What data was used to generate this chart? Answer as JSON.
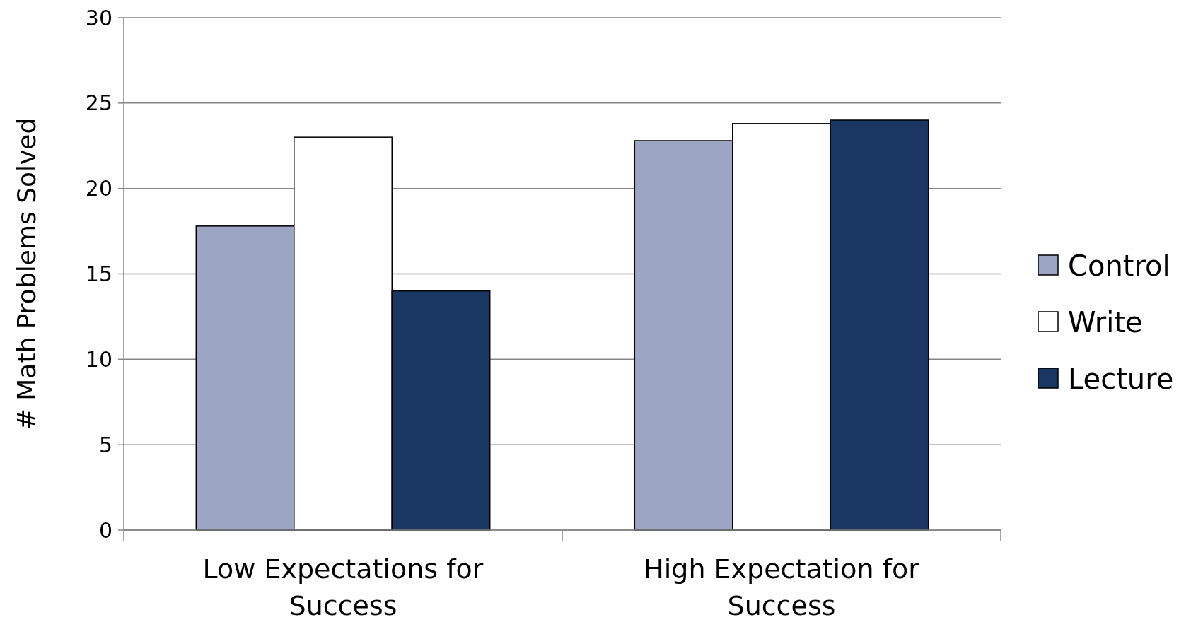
{
  "chart_data": {
    "type": "bar",
    "ylabel": "# Math Problems Solved",
    "categories": [
      "Low Expectations for Success",
      "High Expectation for Success"
    ],
    "series": [
      {
        "name": "Control",
        "color": "#9ca5c4",
        "values": [
          17.8,
          22.8
        ]
      },
      {
        "name": "Write",
        "color": "#ffffff",
        "values": [
          23.0,
          23.8
        ]
      },
      {
        "name": "Lecture",
        "color": "#1a3764",
        "values": [
          14.0,
          24.0
        ]
      }
    ],
    "ylim": [
      0,
      30
    ],
    "yticks": [
      0,
      5,
      10,
      15,
      20,
      25,
      30
    ],
    "grid": "y",
    "legend": "right"
  }
}
